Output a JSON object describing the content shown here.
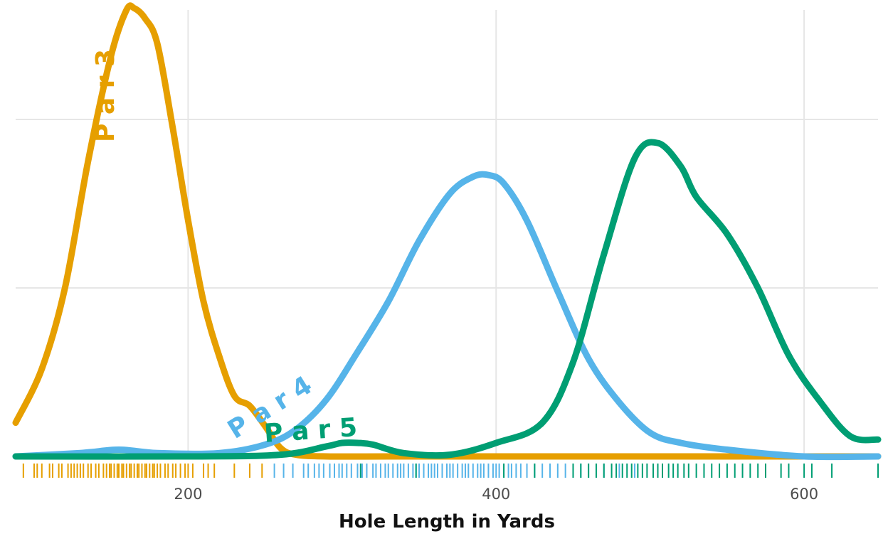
{
  "chart_data": {
    "type": "line",
    "xlabel": "Hole Length in Yards",
    "ylabel": "",
    "xlim": [
      88,
      648
    ],
    "ylim": [
      0,
      0.0265
    ],
    "x_ticks": [
      "200",
      "400",
      "600"
    ],
    "x_tick_values": [
      200,
      400,
      600
    ],
    "y_gridlines": [
      0,
      0.01,
      0.02
    ],
    "grid": true,
    "legend": "none",
    "series": [
      {
        "name": "Par 3",
        "color": "#E69F00",
        "x": [
          88,
          105,
          120,
          135,
          150,
          160,
          165,
          172,
          180,
          190,
          200,
          210,
          220,
          230,
          240,
          250,
          260,
          270,
          290,
          330,
          400,
          500,
          600,
          648
        ],
        "y": [
          0.002,
          0.0052,
          0.01,
          0.0175,
          0.0238,
          0.0265,
          0.0266,
          0.026,
          0.0245,
          0.0195,
          0.014,
          0.0092,
          0.006,
          0.0036,
          0.003,
          0.0018,
          0.0005,
          0.0001,
          0.0,
          0.0,
          0.0,
          0.0,
          0.0,
          0.0
        ]
      },
      {
        "name": "Par 4",
        "color": "#56B4E9",
        "x": [
          88,
          130,
          155,
          180,
          220,
          250,
          270,
          290,
          310,
          330,
          350,
          370,
          385,
          395,
          405,
          420,
          440,
          460,
          480,
          500,
          520,
          550,
          600,
          648
        ],
        "y": [
          0.0,
          0.0002,
          0.0004,
          0.0002,
          0.0002,
          0.0007,
          0.0016,
          0.0034,
          0.0062,
          0.0092,
          0.0128,
          0.0156,
          0.0166,
          0.0167,
          0.0162,
          0.014,
          0.0098,
          0.0058,
          0.0032,
          0.0014,
          0.0008,
          0.0004,
          0.0,
          0.0
        ]
      },
      {
        "name": "Par 5",
        "color": "#009E73",
        "x": [
          88,
          200,
          260,
          290,
          300,
          310,
          320,
          340,
          370,
          400,
          430,
          450,
          470,
          490,
          505,
          520,
          530,
          550,
          570,
          590,
          610,
          630,
          648
        ],
        "y": [
          0.0,
          0.0,
          0.0001,
          0.0006,
          0.0008,
          0.0008,
          0.0007,
          0.0002,
          0.0001,
          0.0008,
          0.002,
          0.0056,
          0.012,
          0.0177,
          0.0186,
          0.0172,
          0.0154,
          0.0132,
          0.01,
          0.006,
          0.0033,
          0.0012,
          0.001
        ]
      }
    ],
    "rug": {
      "Par 3": [
        93,
        100,
        102,
        105,
        110,
        112,
        116,
        118,
        122,
        124,
        126,
        128,
        130,
        132,
        135,
        137,
        140,
        142,
        145,
        147,
        149,
        150,
        152,
        154,
        155,
        157,
        158,
        160,
        162,
        163,
        165,
        167,
        168,
        170,
        172,
        173,
        175,
        177,
        178,
        180,
        182,
        185,
        187,
        190,
        192,
        195,
        198,
        200,
        203,
        210,
        213,
        217,
        230,
        240,
        248
      ],
      "Par 4": [
        256,
        262,
        268,
        275,
        278,
        282,
        285,
        288,
        292,
        295,
        298,
        300,
        303,
        306,
        310,
        313,
        316,
        320,
        322,
        325,
        328,
        330,
        333,
        336,
        338,
        340,
        343,
        346,
        348,
        350,
        353,
        356,
        358,
        360,
        362,
        365,
        368,
        370,
        372,
        375,
        378,
        380,
        382,
        385,
        388,
        390,
        392,
        395,
        398,
        400,
        402,
        405,
        408,
        410,
        413,
        416,
        420,
        425,
        430,
        435,
        440,
        445,
        450,
        455,
        460,
        470,
        480,
        490
      ],
      "Par 5": [
        312,
        348,
        405,
        425,
        450,
        455,
        460,
        465,
        470,
        475,
        478,
        482,
        485,
        488,
        492,
        495,
        498,
        502,
        505,
        508,
        512,
        515,
        518,
        522,
        525,
        530,
        535,
        540,
        545,
        550,
        555,
        560,
        565,
        570,
        575,
        585,
        590,
        600,
        605,
        618,
        648
      ]
    },
    "annotations": [
      {
        "series": "Par 3",
        "text": "P a r  3",
        "color": "#E69F00"
      },
      {
        "series": "Par 4",
        "text": "P a r  4",
        "color": "#56B4E9"
      },
      {
        "series": "Par 5",
        "text": "P a r  5",
        "color": "#009E73"
      }
    ]
  }
}
